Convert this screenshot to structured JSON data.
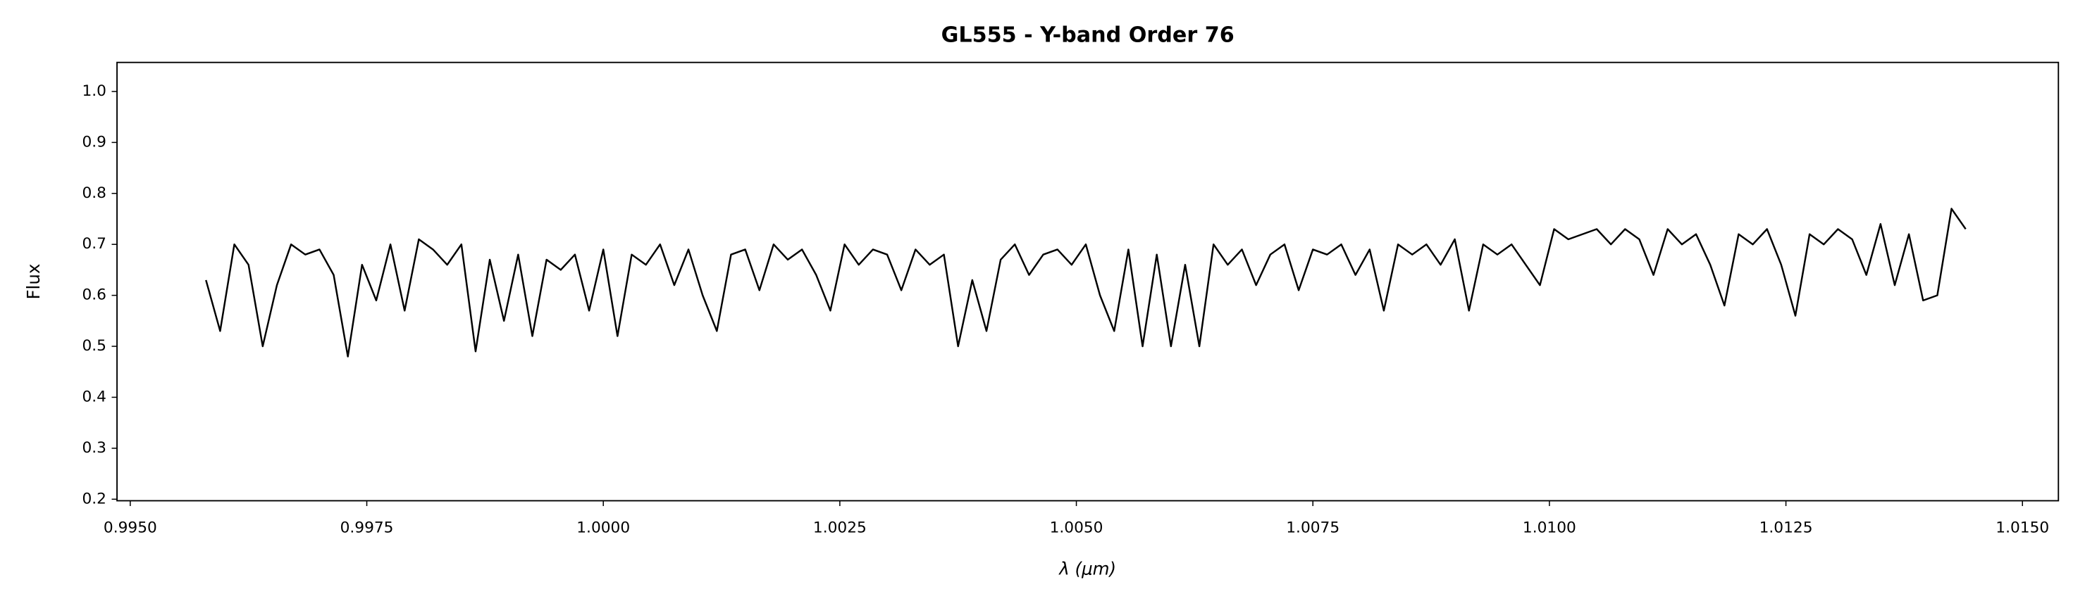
{
  "chart_data": {
    "type": "line",
    "title": "GL555 - Y-band Order 76",
    "x_label": "λ (μm)",
    "y_label": "Flux",
    "x": [
      0.9958,
      0.99595,
      0.9961,
      0.99625,
      0.9964,
      0.99655,
      0.9967,
      0.99685,
      0.997,
      0.99715,
      0.9973,
      0.99745,
      0.9976,
      0.99775,
      0.9979,
      0.99805,
      0.9982,
      0.99835,
      0.9985,
      0.99865,
      0.9988,
      0.99895,
      0.9991,
      0.99925,
      0.9994,
      0.99955,
      0.9997,
      0.99985,
      1.0,
      1.00015,
      1.0003,
      1.00045,
      1.0006,
      1.00075,
      1.0009,
      1.00105,
      1.0012,
      1.00135,
      1.0015,
      1.00165,
      1.0018,
      1.00195,
      1.0021,
      1.00225,
      1.0024,
      1.00255,
      1.0027,
      1.00285,
      1.003,
      1.00315,
      1.0033,
      1.00345,
      1.0036,
      1.00375,
      1.0039,
      1.00405,
      1.0042,
      1.00435,
      1.0045,
      1.00465,
      1.0048,
      1.00495,
      1.0051,
      1.00525,
      1.0054,
      1.00555,
      1.0057,
      1.00585,
      1.006,
      1.00615,
      1.0063,
      1.00645,
      1.0066,
      1.00675,
      1.0069,
      1.00705,
      1.0072,
      1.00735,
      1.0075,
      1.00765,
      1.0078,
      1.00795,
      1.0081,
      1.00825,
      1.0084,
      1.00855,
      1.0087,
      1.00885,
      1.009,
      1.00915,
      1.0093,
      1.00945,
      1.0096,
      1.00975,
      1.0099,
      1.01005,
      1.0102,
      1.01035,
      1.0105,
      1.01065,
      1.0108,
      1.01095,
      1.0111,
      1.01125,
      1.0114,
      1.01155,
      1.0117,
      1.01185,
      1.012,
      1.01215,
      1.0123,
      1.01245,
      1.0126,
      1.01275,
      1.0129,
      1.01305,
      1.0132,
      1.01335,
      1.0135,
      1.01365,
      1.0138,
      1.01395,
      1.0141,
      1.01425,
      1.0144
    ],
    "series": [
      {
        "name": "GL555",
        "color": "#000000",
        "values": [
          0.63,
          0.53,
          0.7,
          0.66,
          0.5,
          0.62,
          0.7,
          0.68,
          0.69,
          0.64,
          0.48,
          0.66,
          0.59,
          0.7,
          0.57,
          0.71,
          0.69,
          0.66,
          0.7,
          0.49,
          0.67,
          0.55,
          0.68,
          0.52,
          0.67,
          0.65,
          0.68,
          0.57,
          0.69,
          0.52,
          0.68,
          0.66,
          0.7,
          0.62,
          0.69,
          0.6,
          0.53,
          0.68,
          0.69,
          0.61,
          0.7,
          0.67,
          0.69,
          0.64,
          0.57,
          0.7,
          0.66,
          0.69,
          0.68,
          0.61,
          0.69,
          0.66,
          0.68,
          0.5,
          0.63,
          0.53,
          0.67,
          0.7,
          0.64,
          0.68,
          0.69,
          0.66,
          0.7,
          0.6,
          0.53,
          0.69,
          0.5,
          0.68,
          0.5,
          0.66,
          0.5,
          0.7,
          0.66,
          0.69,
          0.62,
          0.68,
          0.7,
          0.61,
          0.69,
          0.68,
          0.7,
          0.64,
          0.69,
          0.57,
          0.7,
          0.68,
          0.7,
          0.66,
          0.71,
          0.57,
          0.7,
          0.68,
          0.7,
          0.66,
          0.62,
          0.73,
          0.71,
          0.72,
          0.73,
          0.7,
          0.73,
          0.71,
          0.64,
          0.73,
          0.7,
          0.72,
          0.66,
          0.58,
          0.72,
          0.7,
          0.73,
          0.66,
          0.56,
          0.72,
          0.7,
          0.73,
          0.71,
          0.64,
          0.74,
          0.62,
          0.72,
          0.59,
          0.6,
          0.77,
          0.73
        ]
      }
    ],
    "xlim": [
      0.99486,
      1.01538
    ],
    "ylim": [
      0.197,
      1.057
    ],
    "xticks": [
      {
        "value": 0.995,
        "label": "0.9950"
      },
      {
        "value": 0.9975,
        "label": "0.9975"
      },
      {
        "value": 1.0,
        "label": "1.0000"
      },
      {
        "value": 1.0025,
        "label": "1.0025"
      },
      {
        "value": 1.005,
        "label": "1.0050"
      },
      {
        "value": 1.0075,
        "label": "1.0075"
      },
      {
        "value": 1.01,
        "label": "1.0100"
      },
      {
        "value": 1.0125,
        "label": "1.0125"
      },
      {
        "value": 1.015,
        "label": "1.0150"
      }
    ],
    "yticks": [
      0.2,
      0.3,
      0.4,
      0.5,
      0.6,
      0.7,
      0.8,
      0.9,
      {
        "value": 1.0,
        "label": "1.0"
      }
    ],
    "grid": false
  }
}
